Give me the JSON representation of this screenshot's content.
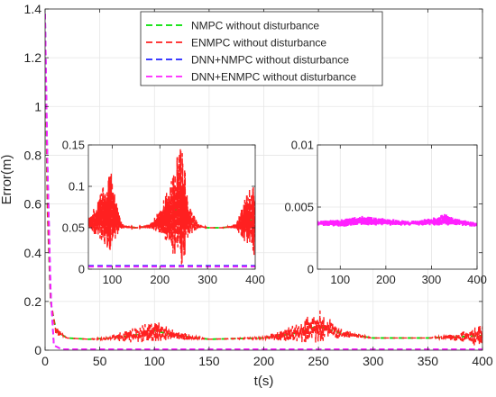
{
  "chart_data": [
    {
      "type": "line",
      "xlabel": "t(s)",
      "ylabel": "Error(m)",
      "xlim": [
        0,
        400
      ],
      "ylim": [
        0,
        1.4
      ],
      "xticks": [
        "0",
        "50",
        "100",
        "150",
        "200",
        "250",
        "300",
        "350",
        "400"
      ],
      "yticks": [
        "0",
        "0.2",
        "0.4",
        "0.6",
        "0.8",
        "1",
        "1.2",
        "1.4"
      ],
      "legend_position": "top-center",
      "legend": [
        {
          "label": "NMPC without disturbance",
          "color": "#00e000"
        },
        {
          "label": "ENMPC without disturbance",
          "color": "#ff2020"
        },
        {
          "label": "DNN+NMPC without disturbance",
          "color": "#2020ff"
        },
        {
          "label": "DNN+ENMPC without disturbance",
          "color": "#ff20ff"
        }
      ],
      "series": [
        {
          "name": "NMPC without disturbance",
          "x": [
            0,
            2,
            5,
            10,
            20,
            40,
            60,
            80,
            100,
            120,
            150,
            200,
            230,
            250,
            270,
            300,
            350,
            380,
            400
          ],
          "y": [
            1.38,
            0.6,
            0.2,
            0.08,
            0.05,
            0.045,
            0.05,
            0.06,
            0.08,
            0.06,
            0.045,
            0.05,
            0.07,
            0.1,
            0.07,
            0.05,
            0.05,
            0.055,
            0.06
          ]
        },
        {
          "name": "ENMPC without disturbance",
          "x": [
            0,
            2,
            5,
            10,
            20,
            40,
            60,
            80,
            100,
            120,
            150,
            200,
            230,
            250,
            270,
            300,
            350,
            380,
            400
          ],
          "y": [
            1.38,
            0.6,
            0.2,
            0.08,
            0.05,
            0.045,
            0.05,
            0.06,
            0.08,
            0.06,
            0.045,
            0.05,
            0.07,
            0.1,
            0.07,
            0.05,
            0.05,
            0.055,
            0.06
          ],
          "amplitude": [
            0,
            0,
            0,
            0.02,
            0,
            0,
            0.01,
            0.03,
            0.05,
            0.02,
            0,
            0.005,
            0.04,
            0.07,
            0.02,
            0,
            0,
            0.02,
            0.05
          ]
        },
        {
          "name": "DNN+NMPC without disturbance",
          "x": [
            0,
            2,
            5,
            8,
            15,
            400
          ],
          "y": [
            1.38,
            0.8,
            0.25,
            0.02,
            0.004,
            0.004
          ]
        },
        {
          "name": "DNN+ENMPC without disturbance",
          "x": [
            0,
            2,
            5,
            8,
            15,
            400
          ],
          "y": [
            1.38,
            0.8,
            0.25,
            0.02,
            0.004,
            0.004
          ]
        }
      ]
    },
    {
      "type": "line",
      "xlim": [
        50,
        400
      ],
      "ylim": [
        0,
        0.15
      ],
      "xticks": [
        "100",
        "200",
        "300",
        "400"
      ],
      "yticks": [
        "0",
        "0.05",
        "0.1",
        "0.15"
      ],
      "series": [
        {
          "name": "NMPC without disturbance",
          "x": [
            50,
            60,
            80,
            100,
            110,
            120,
            150,
            180,
            200,
            220,
            240,
            250,
            260,
            280,
            300,
            330,
            360,
            380,
            400
          ],
          "y": [
            0.055,
            0.058,
            0.065,
            0.07,
            0.06,
            0.052,
            0.05,
            0.052,
            0.058,
            0.065,
            0.075,
            0.075,
            0.06,
            0.052,
            0.05,
            0.05,
            0.052,
            0.058,
            0.06
          ]
        },
        {
          "name": "ENMPC without disturbance",
          "x": [
            50,
            60,
            80,
            100,
            110,
            120,
            150,
            180,
            200,
            220,
            240,
            250,
            260,
            280,
            300,
            330,
            360,
            380,
            400
          ],
          "y": [
            0.055,
            0.058,
            0.065,
            0.07,
            0.06,
            0.052,
            0.05,
            0.052,
            0.058,
            0.065,
            0.075,
            0.075,
            0.06,
            0.052,
            0.05,
            0.05,
            0.052,
            0.058,
            0.06
          ],
          "amplitude": [
            0.005,
            0.015,
            0.035,
            0.05,
            0.02,
            0.003,
            0,
            0.003,
            0.015,
            0.04,
            0.07,
            0.07,
            0.02,
            0.003,
            0,
            0,
            0.003,
            0.03,
            0.05
          ]
        },
        {
          "name": "DNN+NMPC without disturbance",
          "x": [
            50,
            400
          ],
          "y": [
            0.004,
            0.004
          ]
        },
        {
          "name": "DNN+ENMPC without disturbance",
          "x": [
            50,
            400
          ],
          "y": [
            0.003,
            0.003
          ]
        }
      ]
    },
    {
      "type": "line",
      "xlim": [
        50,
        400
      ],
      "ylim": [
        0,
        0.01
      ],
      "xticks": [
        "100",
        "200",
        "300",
        "400"
      ],
      "yticks": [
        "0",
        "0.005",
        "0.01"
      ],
      "series": [
        {
          "name": "DNN+ENMPC without disturbance",
          "x": [
            50,
            100,
            150,
            200,
            250,
            300,
            330,
            350,
            400
          ],
          "y": [
            0.0037,
            0.0037,
            0.0039,
            0.0038,
            0.0037,
            0.0038,
            0.004,
            0.0038,
            0.0036
          ],
          "amplitude": [
            0.0002,
            0.0003,
            0.0004,
            0.0003,
            0.0002,
            0.0003,
            0.0005,
            0.0003,
            0.0002
          ]
        }
      ]
    }
  ]
}
